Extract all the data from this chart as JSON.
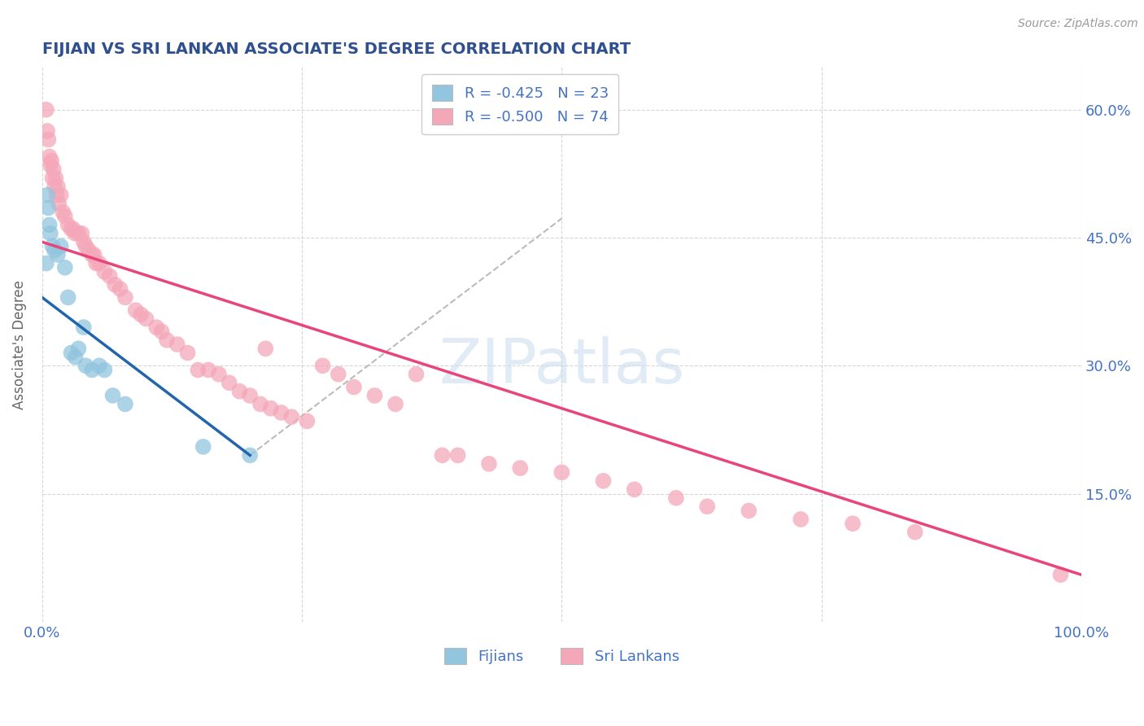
{
  "title": "FIJIAN VS SRI LANKAN ASSOCIATE'S DEGREE CORRELATION CHART",
  "source": "Source: ZipAtlas.com",
  "ylabel": "Associate's Degree",
  "xlim": [
    0.0,
    1.0
  ],
  "ylim": [
    0.0,
    0.65
  ],
  "fijian_color": "#92C5DE",
  "srilanka_color": "#F4A7B9",
  "fijian_line_color": "#2166AC",
  "srilanka_line_color": "#E8457A",
  "dashed_line_color": "#BBBBBB",
  "legend_R_fijian": "-0.425",
  "legend_N_fijian": "23",
  "legend_R_srilanka": "-0.500",
  "legend_N_srilanka": "74",
  "watermark": "ZIPatlas",
  "title_color": "#2F4F8F",
  "axis_color": "#4472C4",
  "grid_color": "#CCCCCC",
  "fijian_line": [
    0.0,
    0.38,
    0.2,
    0.195
  ],
  "srilanka_line": [
    0.0,
    0.445,
    1.0,
    0.055
  ],
  "fijian_points_x": [
    0.004,
    0.005,
    0.006,
    0.007,
    0.008,
    0.01,
    0.012,
    0.015,
    0.018,
    0.022,
    0.025,
    0.028,
    0.032,
    0.035,
    0.04,
    0.042,
    0.048,
    0.055,
    0.06,
    0.068,
    0.08,
    0.155,
    0.2
  ],
  "fijian_points_y": [
    0.42,
    0.5,
    0.485,
    0.465,
    0.455,
    0.44,
    0.435,
    0.43,
    0.44,
    0.415,
    0.38,
    0.315,
    0.31,
    0.32,
    0.345,
    0.3,
    0.295,
    0.3,
    0.295,
    0.265,
    0.255,
    0.205,
    0.195
  ],
  "srilanka_points_x": [
    0.004,
    0.005,
    0.006,
    0.007,
    0.008,
    0.009,
    0.01,
    0.011,
    0.012,
    0.013,
    0.014,
    0.015,
    0.016,
    0.018,
    0.02,
    0.022,
    0.025,
    0.028,
    0.03,
    0.032,
    0.035,
    0.038,
    0.04,
    0.042,
    0.045,
    0.048,
    0.05,
    0.052,
    0.055,
    0.06,
    0.065,
    0.07,
    0.075,
    0.08,
    0.09,
    0.095,
    0.1,
    0.11,
    0.115,
    0.12,
    0.13,
    0.14,
    0.15,
    0.16,
    0.17,
    0.18,
    0.19,
    0.2,
    0.21,
    0.215,
    0.22,
    0.23,
    0.24,
    0.255,
    0.27,
    0.285,
    0.3,
    0.32,
    0.34,
    0.36,
    0.385,
    0.4,
    0.43,
    0.46,
    0.5,
    0.54,
    0.57,
    0.61,
    0.64,
    0.68,
    0.73,
    0.78,
    0.84,
    0.98
  ],
  "srilanka_points_y": [
    0.6,
    0.575,
    0.565,
    0.545,
    0.535,
    0.54,
    0.52,
    0.53,
    0.51,
    0.52,
    0.5,
    0.51,
    0.49,
    0.5,
    0.48,
    0.475,
    0.465,
    0.46,
    0.46,
    0.455,
    0.455,
    0.455,
    0.445,
    0.44,
    0.435,
    0.43,
    0.43,
    0.42,
    0.42,
    0.41,
    0.405,
    0.395,
    0.39,
    0.38,
    0.365,
    0.36,
    0.355,
    0.345,
    0.34,
    0.33,
    0.325,
    0.315,
    0.295,
    0.295,
    0.29,
    0.28,
    0.27,
    0.265,
    0.255,
    0.32,
    0.25,
    0.245,
    0.24,
    0.235,
    0.3,
    0.29,
    0.275,
    0.265,
    0.255,
    0.29,
    0.195,
    0.195,
    0.185,
    0.18,
    0.175,
    0.165,
    0.155,
    0.145,
    0.135,
    0.13,
    0.12,
    0.115,
    0.105,
    0.055
  ]
}
